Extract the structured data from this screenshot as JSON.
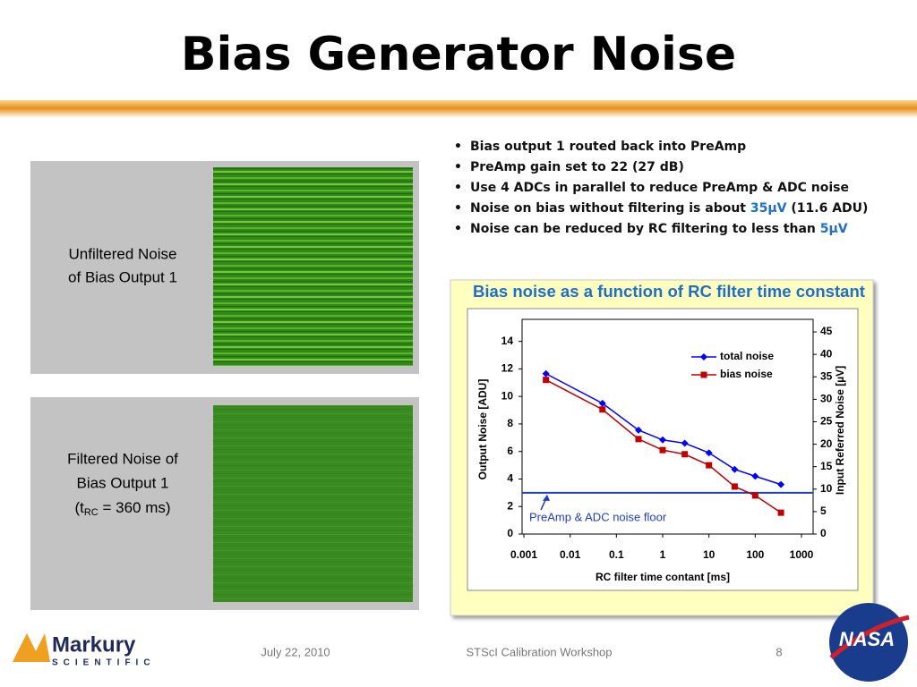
{
  "title": "Bias Generator Noise",
  "panels": [
    {
      "lines": [
        "Unfiltered Noise",
        "of Bias Output 1"
      ]
    },
    {
      "lines": [
        "Filtered Noise of",
        "Bias Output 1"
      ],
      "note": [
        "(t",
        "RC",
        " = 360 ms)"
      ]
    }
  ],
  "bullets": [
    [
      "Bias output 1 routed back into PreAmp"
    ],
    [
      "PreAmp gain set to 22 (27 dB)"
    ],
    [
      "Use 4 ADCs in parallel to reduce PreAmp & ADC noise"
    ],
    [
      "Noise on bias without filtering is about ",
      "35µV",
      " (11.6 ADU)"
    ],
    [
      "Noise can be reduced by RC filtering to less than ",
      "5µV"
    ]
  ],
  "highlight_color": "#1f6fc5",
  "footer": {
    "date": "July 22, 2010",
    "event": "STScI Calibration Workshop",
    "page": "8"
  },
  "logos": {
    "company": "Markury",
    "company_sub": "SCIENTIFIC",
    "agency": "NASA"
  },
  "chart_data": {
    "type": "line",
    "title": "Bias noise as a function of RC filter time constant",
    "x_label": "RC filter time contant [ms]",
    "y_label": "Output Noise [ADU]",
    "y2_label": "Input Referred Noise [µV]",
    "x_scale": "log",
    "xlim": [
      0.001,
      1000
    ],
    "xticks": [
      0.001,
      0.01,
      0.1,
      1,
      10,
      100,
      1000
    ],
    "ylim": [
      0,
      15.6
    ],
    "yticks": [
      0,
      2,
      4,
      6,
      8,
      10,
      12,
      14
    ],
    "y2lim": [
      0,
      47.8
    ],
    "y2ticks": [
      0,
      5,
      10,
      15,
      20,
      25,
      30,
      35,
      40,
      45
    ],
    "legend": "upper right",
    "x": [
      0.003,
      0.05,
      0.3,
      1,
      3,
      10,
      36,
      100,
      360
    ],
    "series": [
      {
        "name": "total noise",
        "color": "#0000ff",
        "marker": "diamond",
        "values": [
          11.65,
          9.5,
          7.55,
          6.84,
          6.6,
          5.9,
          4.7,
          4.2,
          3.6
        ]
      },
      {
        "name": "bias noise",
        "color": "#c00000",
        "marker": "square",
        "values": [
          11.2,
          9.05,
          6.9,
          6.1,
          5.8,
          5.0,
          3.45,
          2.8,
          1.55
        ]
      }
    ],
    "noise_floor": {
      "value": 3,
      "label": "PreAmp & ADC noise floor",
      "color": "#1f3fbf"
    }
  }
}
